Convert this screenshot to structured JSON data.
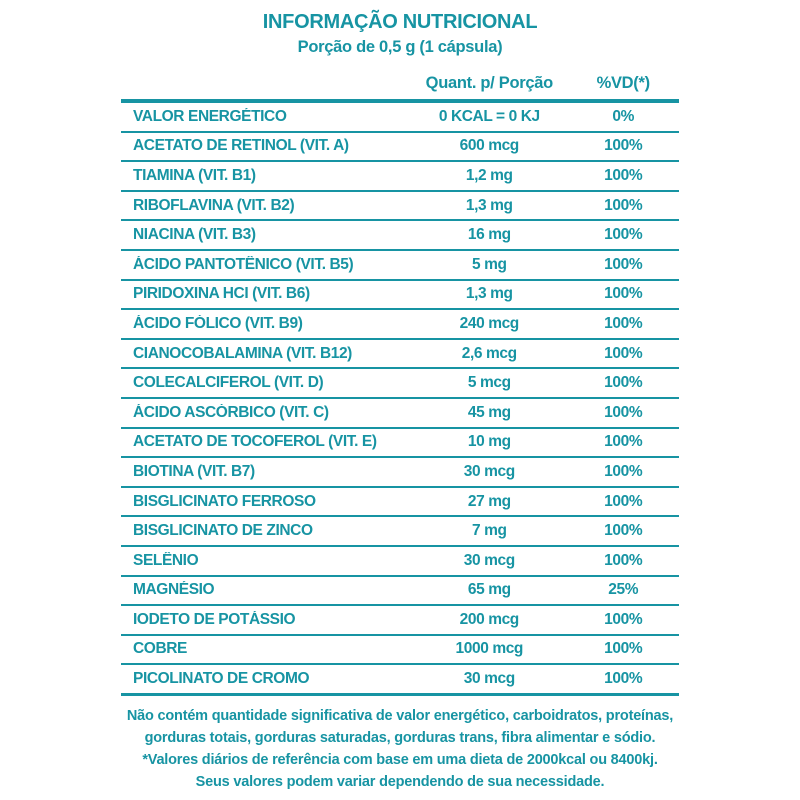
{
  "header": {
    "title": "INFORMAÇÃO NUTRICIONAL",
    "subtitle": "Porção de 0,5 g (1 cápsula)"
  },
  "table": {
    "columns": {
      "quantity": "Quant. p/ Porção",
      "dv": "%VD(*)"
    },
    "rows": [
      {
        "name": "VALOR ENERGÉTICO",
        "quantity": "0 KCAL = 0 KJ",
        "dv": "0%"
      },
      {
        "name": "ACETATO DE RETINOL (VIT. A)",
        "quantity": "600 mcg",
        "dv": "100%"
      },
      {
        "name": "TIAMINA (VIT. B1)",
        "quantity": "1,2 mg",
        "dv": "100%"
      },
      {
        "name": "RIBOFLAVINA (VIT. B2)",
        "quantity": "1,3 mg",
        "dv": "100%"
      },
      {
        "name": "NIACINA (VIT. B3)",
        "quantity": "16 mg",
        "dv": "100%"
      },
      {
        "name": "ÁCIDO PANTOTÊNICO (VIT. B5)",
        "quantity": "5 mg",
        "dv": "100%"
      },
      {
        "name": "PIRIDOXINA HCI (VIT. B6)",
        "quantity": "1,3 mg",
        "dv": "100%"
      },
      {
        "name": "ÁCIDO FÓLICO (VIT. B9)",
        "quantity": "240 mcg",
        "dv": "100%"
      },
      {
        "name": "CIANOCOBALAMINA (VIT. B12)",
        "quantity": "2,6 mcg",
        "dv": "100%"
      },
      {
        "name": "COLECALCIFEROL (VIT. D)",
        "quantity": "5 mcg",
        "dv": "100%"
      },
      {
        "name": "ÁCIDO ASCÓRBICO (VIT. C)",
        "quantity": "45 mg",
        "dv": "100%"
      },
      {
        "name": "ACETATO DE TOCOFEROL (VIT. E)",
        "quantity": "10 mg",
        "dv": "100%"
      },
      {
        "name": "BIOTINA (VIT. B7)",
        "quantity": "30 mcg",
        "dv": "100%"
      },
      {
        "name": "BISGLICINATO FERROSO",
        "quantity": "27 mg",
        "dv": "100%"
      },
      {
        "name": "BISGLICINATO DE ZINCO",
        "quantity": "7 mg",
        "dv": "100%"
      },
      {
        "name": "SELÊNIO",
        "quantity": "30 mcg",
        "dv": "100%"
      },
      {
        "name": "MAGNÉSIO",
        "quantity": "65 mg",
        "dv": "25%"
      },
      {
        "name": "IODETO DE POTÁSSIO",
        "quantity": "200 mcg",
        "dv": "100%"
      },
      {
        "name": "COBRE",
        "quantity": "1000 mcg",
        "dv": "100%"
      },
      {
        "name": "PICOLINATO DE CROMO",
        "quantity": "30 mcg",
        "dv": "100%"
      }
    ]
  },
  "footnotes": {
    "lines": [
      "Não contém quantidade significativa de valor energético, carboidratos, proteínas,",
      "gorduras totais, gorduras saturadas, gorduras trans, fibra alimentar e sódio.",
      "*Valores diários de referência com base em uma dieta de 2000kcal ou 8400kj.",
      "Seus valores podem variar dependendo de sua necessidade."
    ]
  },
  "colors": {
    "accent": "#1794A3",
    "background": "#FFFFFF"
  }
}
